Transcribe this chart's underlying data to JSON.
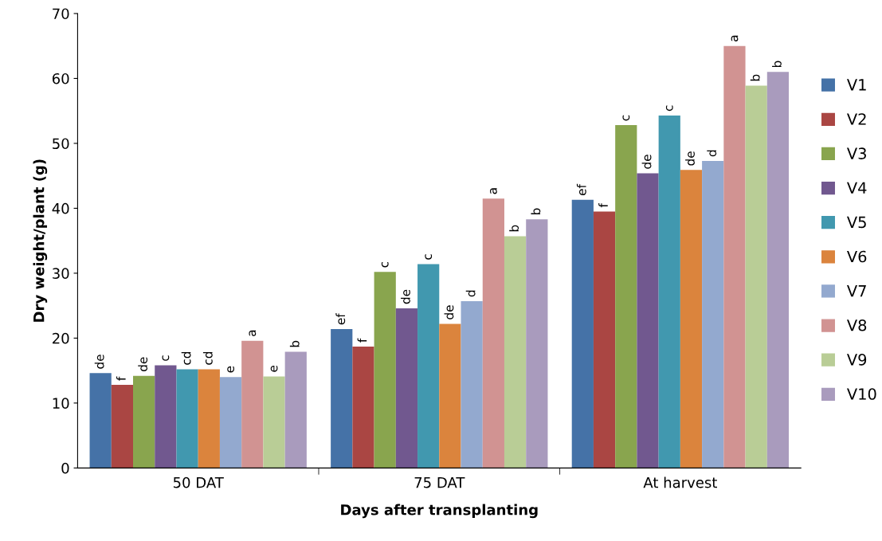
{
  "chart_data": {
    "type": "bar",
    "xlabel": "Days after transplanting",
    "ylabel": "Dry weight/plant (g)",
    "categories": [
      "50 DAT",
      "75 DAT",
      "At harvest"
    ],
    "ylim": [
      0,
      70
    ],
    "yticks": [
      0,
      10,
      20,
      30,
      40,
      50,
      60,
      70
    ],
    "grid": false,
    "legend": "right",
    "series": [
      {
        "name": "V1",
        "color": "#4572a7",
        "values": [
          14.6,
          21.4,
          41.3
        ],
        "value_labels": [
          "de",
          "ef",
          "ef"
        ]
      },
      {
        "name": "V2",
        "color": "#aa4643",
        "values": [
          12.8,
          18.7,
          39.5
        ],
        "value_labels": [
          "f",
          "f",
          "f"
        ]
      },
      {
        "name": "V3",
        "color": "#89a54e",
        "values": [
          14.2,
          30.2,
          52.8
        ],
        "value_labels": [
          "de",
          "c",
          "c"
        ]
      },
      {
        "name": "V4",
        "color": "#71588f",
        "values": [
          15.8,
          24.6,
          45.4
        ],
        "value_labels": [
          "c",
          "de",
          "de"
        ]
      },
      {
        "name": "V5",
        "color": "#4198af",
        "values": [
          15.2,
          31.4,
          54.3
        ],
        "value_labels": [
          "cd",
          "c",
          "c"
        ]
      },
      {
        "name": "V6",
        "color": "#db843d",
        "values": [
          15.2,
          22.2,
          45.9
        ],
        "value_labels": [
          "cd",
          "de",
          "de"
        ]
      },
      {
        "name": "V7",
        "color": "#93a9cf",
        "values": [
          14.0,
          25.7,
          47.3
        ],
        "value_labels": [
          "e",
          "d",
          "d"
        ]
      },
      {
        "name": "V8",
        "color": "#d19392",
        "values": [
          19.6,
          41.5,
          65.0
        ],
        "value_labels": [
          "a",
          "a",
          "a"
        ]
      },
      {
        "name": "V9",
        "color": "#b9cd96",
        "values": [
          14.1,
          35.7,
          58.9
        ],
        "value_labels": [
          "e",
          "b",
          "b"
        ]
      },
      {
        "name": "V10",
        "color": "#a99bbd",
        "values": [
          17.9,
          38.3,
          61.0
        ],
        "value_labels": [
          "b",
          "b",
          "b"
        ]
      }
    ]
  }
}
